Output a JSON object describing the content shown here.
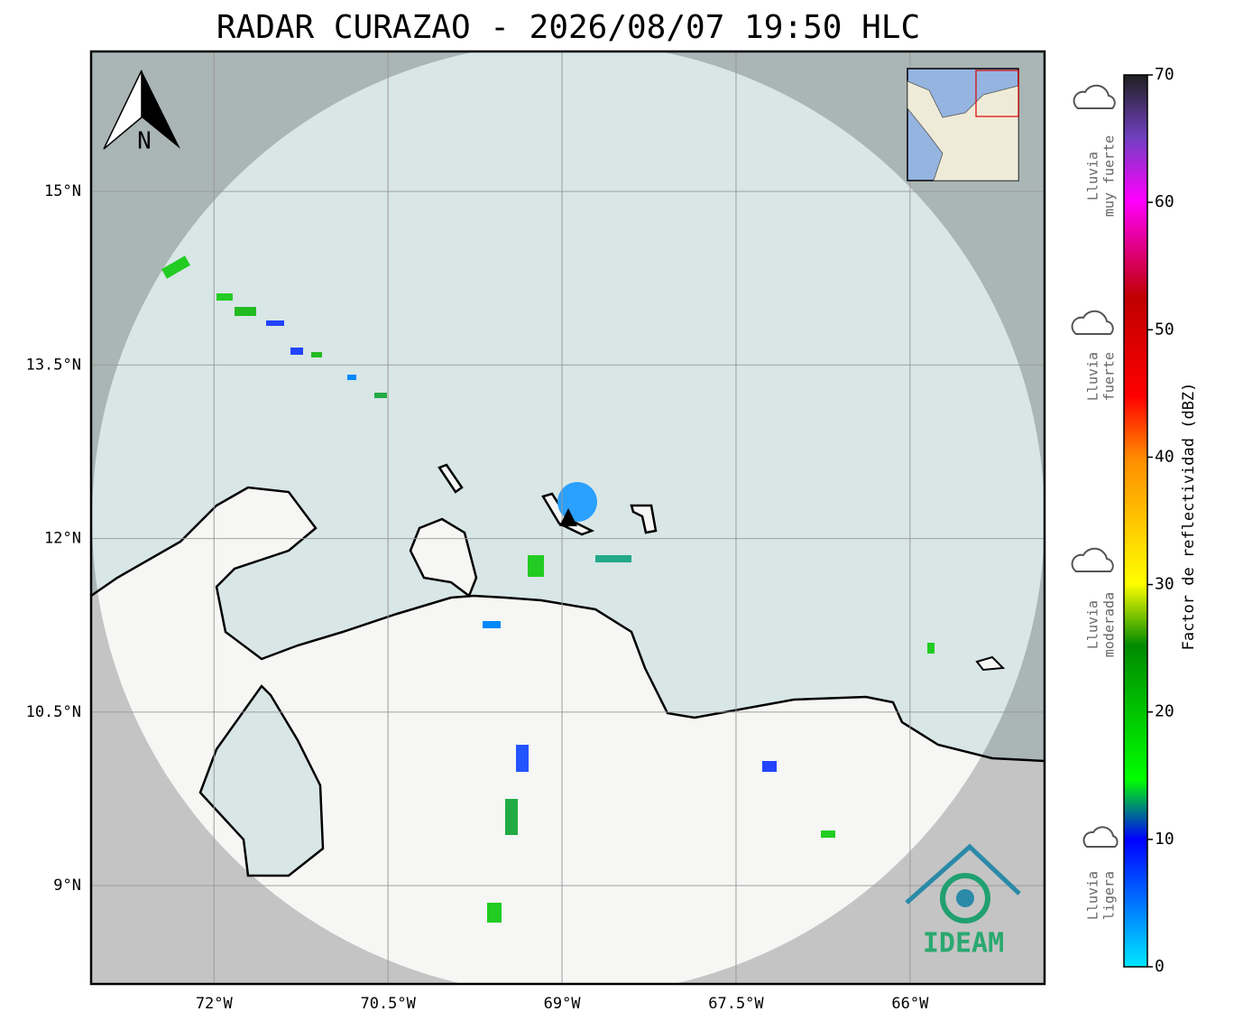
{
  "map": {
    "title": "RADAR CURAZAO - 2026/08/07 19:50 HLC",
    "north_label": "N",
    "lonlim": [
      -73.06,
      -64.84
    ],
    "latlim": [
      8.15,
      16.21
    ],
    "lon_ticks": [
      {
        "value": -72,
        "label": "72°W"
      },
      {
        "value": -70.5,
        "label": "70.5°W"
      },
      {
        "value": -69,
        "label": "69°W"
      },
      {
        "value": -67.5,
        "label": "67.5°W"
      },
      {
        "value": -66,
        "label": "66°W"
      }
    ],
    "lat_ticks": [
      {
        "value": 15,
        "label": "15°N"
      },
      {
        "value": 13.5,
        "label": "13.5°N"
      },
      {
        "value": 12,
        "label": "12°N"
      },
      {
        "value": 10.5,
        "label": "10.5°N"
      },
      {
        "value": 9,
        "label": "9°N"
      }
    ],
    "logo_text": "IDEAM"
  },
  "colorbar": {
    "label": "Factor de reflectividad (dBZ)",
    "clim": [
      0,
      70
    ],
    "ticks": [
      0,
      10,
      20,
      30,
      40,
      50,
      60,
      70
    ],
    "rain_labels": [
      {
        "lines": [
          "Lluvia",
          "muy fuerte"
        ]
      },
      {
        "lines": [
          "Lluvia",
          "fuerte"
        ]
      },
      {
        "lines": [
          "Lluvia",
          "moderada"
        ]
      },
      {
        "lines": [
          "Lluvia",
          "ligera"
        ]
      }
    ]
  }
}
